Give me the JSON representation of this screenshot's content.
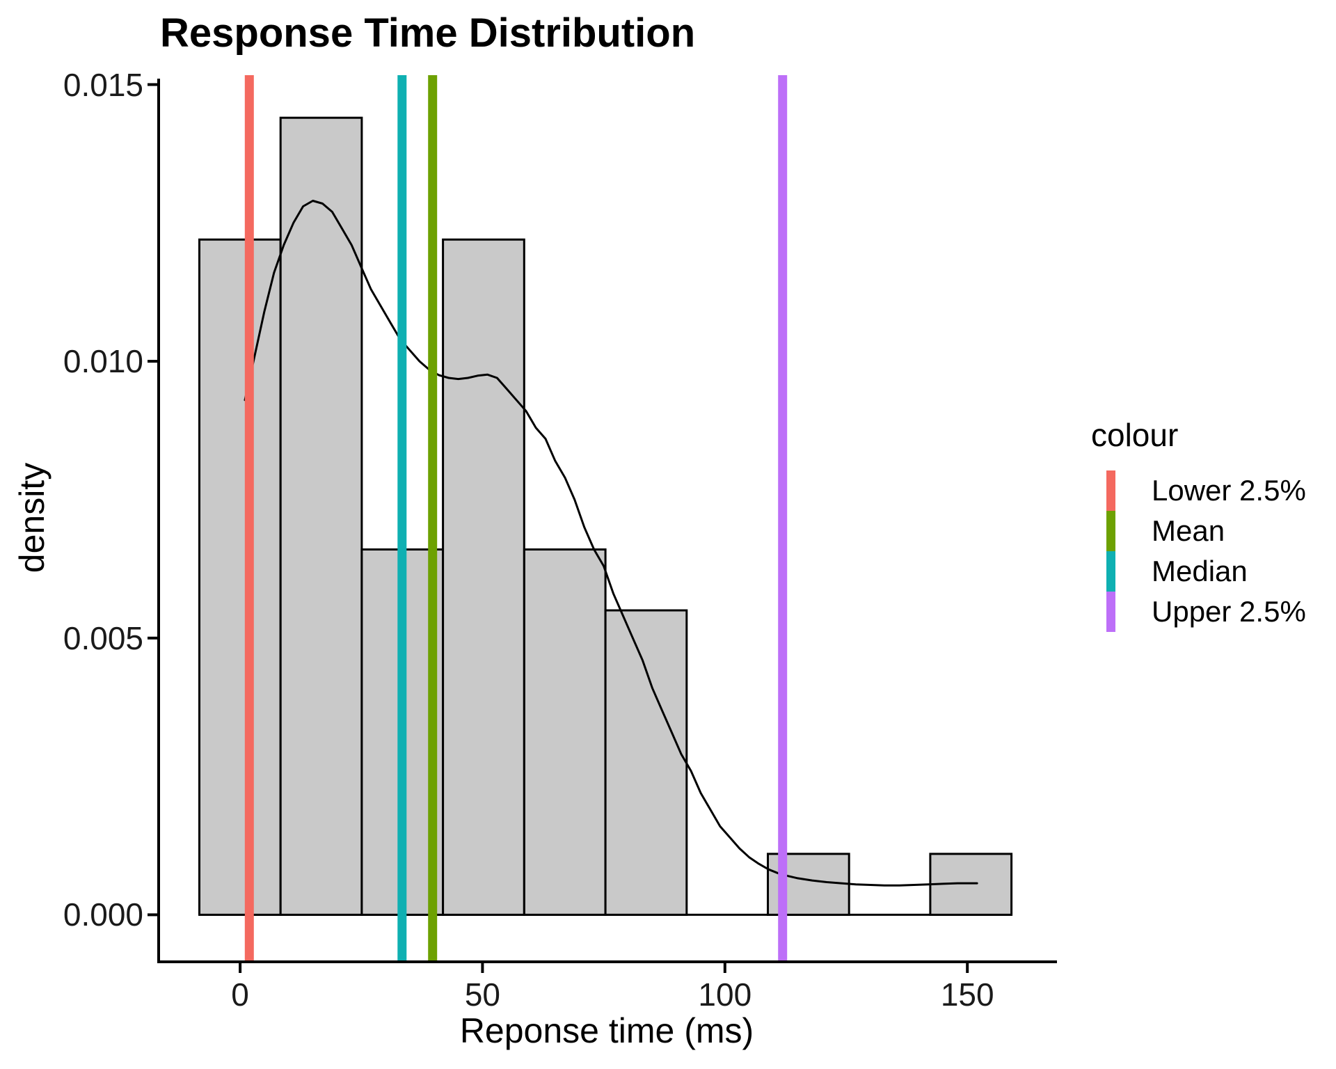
{
  "page": {
    "background": "#ffffff"
  },
  "chart_data": {
    "type": "histogram",
    "title": "Response Time Distribution",
    "xlabel": "Reponse time (ms)",
    "ylabel": "density",
    "xlim": [
      -16.8,
      168.2
    ],
    "ylim": [
      -0.00085,
      0.01517
    ],
    "grid": "off",
    "x_ticks": {
      "values": [
        0,
        50,
        100,
        150
      ],
      "labels": [
        "0",
        "50",
        "100",
        "150"
      ]
    },
    "y_ticks": {
      "values": [
        0,
        0.005,
        0.01,
        0.015
      ],
      "labels": [
        "0.000",
        "0.005",
        "0.010",
        "0.015"
      ]
    },
    "histogram": {
      "bin_start": -8.4,
      "binwidth": 16.75,
      "densities": [
        0.0122,
        0.0144,
        0.0066,
        0.0122,
        0.0066,
        0.0055,
        0,
        0.0011,
        0,
        0.0011
      ],
      "counts": [
        11,
        13,
        6,
        11,
        6,
        5,
        0,
        1,
        0,
        1
      ],
      "fill": "#C9C9C9",
      "outline": "#000000"
    },
    "density_curve": {
      "color": "#000000",
      "points": [
        [
          1,
          0.0093
        ],
        [
          3,
          0.0101
        ],
        [
          5,
          0.0109
        ],
        [
          7,
          0.0116
        ],
        [
          9,
          0.0121
        ],
        [
          11,
          0.0125
        ],
        [
          13,
          0.0128
        ],
        [
          15,
          0.0129
        ],
        [
          17,
          0.01285
        ],
        [
          19,
          0.0127
        ],
        [
          21,
          0.0124
        ],
        [
          23,
          0.0121
        ],
        [
          25,
          0.0117
        ],
        [
          27,
          0.0113
        ],
        [
          29,
          0.011
        ],
        [
          31,
          0.0107
        ],
        [
          33,
          0.0104
        ],
        [
          35,
          0.0102
        ],
        [
          37,
          0.01
        ],
        [
          39,
          0.00985
        ],
        [
          41,
          0.00975
        ],
        [
          43,
          0.0097
        ],
        [
          45,
          0.00968
        ],
        [
          47,
          0.0097
        ],
        [
          49,
          0.00974
        ],
        [
          51,
          0.00976
        ],
        [
          53,
          0.0097
        ],
        [
          55,
          0.0095
        ],
        [
          57,
          0.0093
        ],
        [
          59,
          0.0091
        ],
        [
          61,
          0.0088
        ],
        [
          63,
          0.0086
        ],
        [
          65,
          0.0082
        ],
        [
          67,
          0.0079
        ],
        [
          69,
          0.0075
        ],
        [
          71,
          0.007
        ],
        [
          73,
          0.0066
        ],
        [
          75,
          0.0063
        ],
        [
          77,
          0.0058
        ],
        [
          79,
          0.0054
        ],
        [
          81,
          0.005
        ],
        [
          83,
          0.0046
        ],
        [
          85,
          0.0041
        ],
        [
          87,
          0.0037
        ],
        [
          89,
          0.0033
        ],
        [
          91,
          0.0029
        ],
        [
          93,
          0.0026
        ],
        [
          95,
          0.0022
        ],
        [
          97,
          0.0019
        ],
        [
          99,
          0.0016
        ],
        [
          101,
          0.0014
        ],
        [
          103,
          0.0012
        ],
        [
          105,
          0.00104
        ],
        [
          107,
          0.00092
        ],
        [
          109,
          0.00082
        ],
        [
          111,
          0.00075
        ],
        [
          113,
          0.0007
        ],
        [
          115,
          0.00066
        ],
        [
          118,
          0.00062
        ],
        [
          121,
          0.00059
        ],
        [
          124,
          0.00057
        ],
        [
          127,
          0.00055
        ],
        [
          130,
          0.00054
        ],
        [
          133,
          0.00053
        ],
        [
          136,
          0.00053
        ],
        [
          139,
          0.00054
        ],
        [
          142,
          0.00055
        ],
        [
          145,
          0.00056
        ],
        [
          148,
          0.00057
        ],
        [
          151,
          0.00057
        ],
        [
          152,
          0.00057
        ]
      ]
    },
    "vlines": [
      {
        "label": "Lower 2.5%",
        "x": 1.9,
        "color": "#F4695F"
      },
      {
        "label": "Mean",
        "x": 39.7,
        "color": "#6DA102"
      },
      {
        "label": "Median",
        "x": 33.4,
        "color": "#0FB0B2"
      },
      {
        "label": "Upper 2.5%",
        "x": 111.9,
        "color": "#BD6FF8"
      }
    ],
    "legend": {
      "title": "colour",
      "position": "right",
      "items": [
        {
          "label": "Lower 2.5%",
          "color": "#F4695F"
        },
        {
          "label": "Mean",
          "color": "#6DA102"
        },
        {
          "label": "Median",
          "color": "#0FB0B2"
        },
        {
          "label": "Upper 2.5%",
          "color": "#BD6FF8"
        }
      ]
    }
  }
}
